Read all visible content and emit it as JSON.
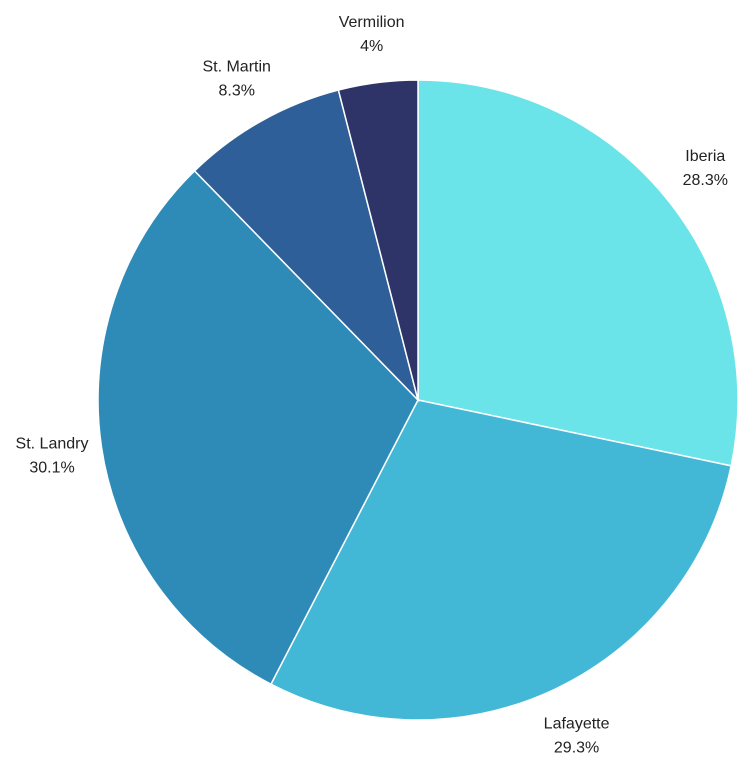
{
  "chart_data": {
    "type": "pie",
    "categories": [
      "Iberia",
      "Lafayette",
      "St. Landry",
      "St. Martin",
      "Vermilion"
    ],
    "values": [
      28.3,
      29.3,
      30.1,
      8.3,
      4
    ],
    "value_labels": [
      "28.3%",
      "29.3%",
      "30.1%",
      "8.3%",
      "4%"
    ],
    "colors": [
      "#6ae4e8",
      "#42b8d6",
      "#2e8bb8",
      "#2f5f98",
      "#2f3468"
    ]
  }
}
